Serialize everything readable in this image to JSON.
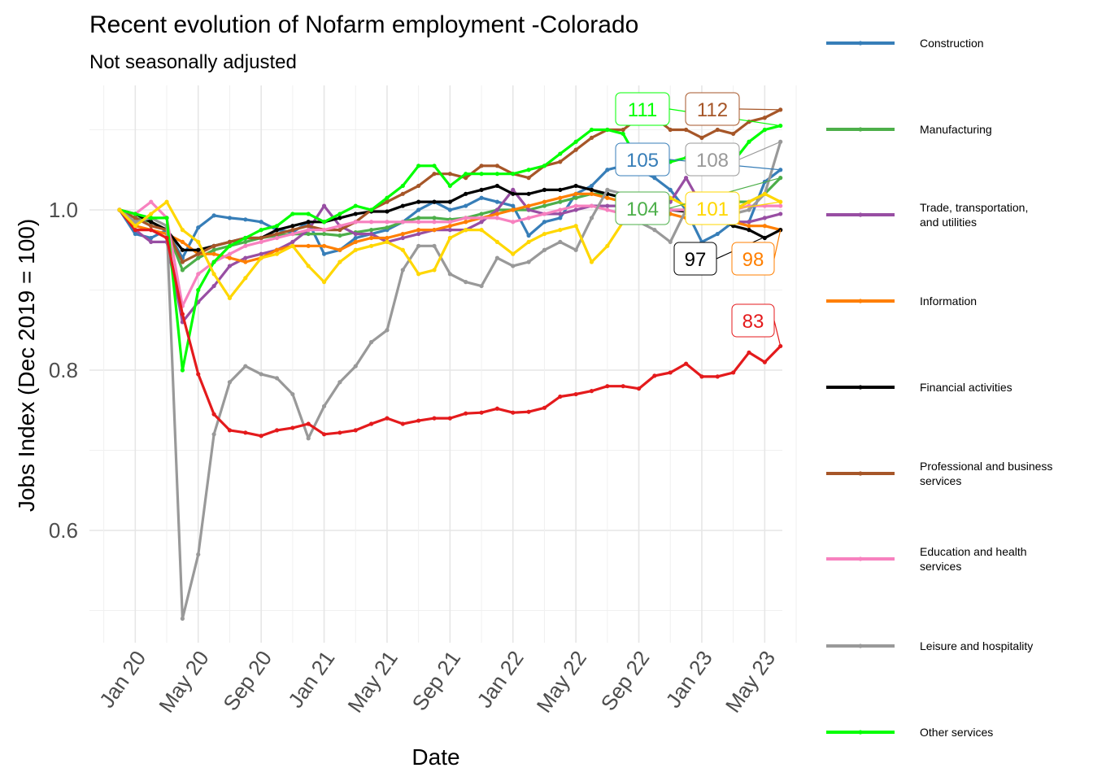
{
  "chart_data": {
    "type": "line",
    "title": "Recent evolution of Nofarm employment -Colorado",
    "subtitle": "Not seasonally adjusted",
    "xlabel": "Date",
    "ylabel": "Jobs Index (Dec 2019 = 100)",
    "ylim": [
      0.46,
      1.14
    ],
    "yticks": [
      0.6,
      0.8,
      1.0
    ],
    "ytick_labels": [
      "0.6",
      "0.8",
      "1.0"
    ],
    "xtick_labels": [
      "Jan 20",
      "May 20",
      "Sep 20",
      "Jan 21",
      "May 21",
      "Sep 21",
      "Jan 22",
      "May 22",
      "Sep 22",
      "Jan 23",
      "May 23"
    ],
    "x": [
      "Dec 19",
      "Jan 20",
      "Feb 20",
      "Mar 20",
      "Apr 20",
      "May 20",
      "Jun 20",
      "Jul 20",
      "Aug 20",
      "Sep 20",
      "Oct 20",
      "Nov 20",
      "Dec 20",
      "Jan 21",
      "Feb 21",
      "Mar 21",
      "Apr 21",
      "May 21",
      "Jun 21",
      "Jul 21",
      "Aug 21",
      "Sep 21",
      "Oct 21",
      "Nov 21",
      "Dec 21",
      "Jan 22",
      "Feb 22",
      "Mar 22",
      "Apr 22",
      "May 22",
      "Jun 22",
      "Jul 22",
      "Aug 22",
      "Sep 22",
      "Oct 22",
      "Nov 22",
      "Dec 22",
      "Jan 23",
      "Feb 23",
      "Mar 23",
      "Apr 23",
      "May 23",
      "Jun 23"
    ],
    "grid": true,
    "legend_position": "right",
    "series": [
      {
        "name": "Construction",
        "color": "#377eb8",
        "end_label": "105",
        "values": [
          1.0,
          0.97,
          0.965,
          0.975,
          0.94,
          0.978,
          0.993,
          0.99,
          0.988,
          0.985,
          0.975,
          0.972,
          0.985,
          0.945,
          0.95,
          0.965,
          0.97,
          0.975,
          0.985,
          1.0,
          1.01,
          1.0,
          1.005,
          1.015,
          1.01,
          1.005,
          0.968,
          0.985,
          0.99,
          1.02,
          1.03,
          1.05,
          1.055,
          1.05,
          1.04,
          1.025,
          1.0,
          0.96,
          0.97,
          0.985,
          0.985,
          1.035,
          1.05
        ]
      },
      {
        "name": "Manufacturing",
        "color": "#4daf4a",
        "end_label": "104",
        "values": [
          1.0,
          0.99,
          0.985,
          0.975,
          0.925,
          0.94,
          0.95,
          0.955,
          0.96,
          0.965,
          0.968,
          0.97,
          0.97,
          0.97,
          0.968,
          0.972,
          0.975,
          0.978,
          0.985,
          0.99,
          0.99,
          0.988,
          0.99,
          0.995,
          1.0,
          1.0,
          1.0,
          1.005,
          1.01,
          1.015,
          1.02,
          1.02,
          1.015,
          1.01,
          1.0,
          1.0,
          1.0,
          1.0,
          1.005,
          1.01,
          1.01,
          1.02,
          1.04
        ]
      },
      {
        "name": "Trade, transportation,\nand utilities",
        "color": "#984ea3",
        "end_label": "",
        "values": [
          1.0,
          0.975,
          0.96,
          0.96,
          0.86,
          0.885,
          0.905,
          0.93,
          0.94,
          0.945,
          0.95,
          0.96,
          0.975,
          1.005,
          0.98,
          0.97,
          0.97,
          0.96,
          0.965,
          0.97,
          0.975,
          0.975,
          0.975,
          0.985,
          1.0,
          1.025,
          1.0,
          0.995,
          0.995,
          1.0,
          1.005,
          1.005,
          1.005,
          1.0,
          0.995,
          1.01,
          1.04,
          1.005,
          0.99,
          0.985,
          0.985,
          0.99,
          0.995
        ]
      },
      {
        "name": "Information",
        "color": "#ff7f00",
        "end_label": "98",
        "values": [
          1.0,
          0.98,
          0.975,
          0.97,
          0.96,
          0.945,
          0.945,
          0.94,
          0.935,
          0.94,
          0.95,
          0.955,
          0.955,
          0.955,
          0.95,
          0.96,
          0.965,
          0.965,
          0.97,
          0.975,
          0.975,
          0.98,
          0.985,
          0.99,
          0.995,
          1.0,
          1.005,
          1.01,
          1.015,
          1.02,
          1.02,
          1.015,
          1.01,
          1.005,
          1.0,
          0.995,
          0.99,
          0.985,
          0.985,
          0.985,
          0.98,
          0.98,
          0.975
        ]
      },
      {
        "name": "Financial activities",
        "color": "#000000",
        "end_label": "97",
        "values": [
          1.0,
          0.995,
          0.985,
          0.975,
          0.95,
          0.95,
          0.955,
          0.96,
          0.965,
          0.965,
          0.975,
          0.98,
          0.985,
          0.985,
          0.99,
          0.995,
          0.998,
          0.998,
          1.005,
          1.01,
          1.01,
          1.01,
          1.02,
          1.025,
          1.03,
          1.02,
          1.02,
          1.025,
          1.025,
          1.03,
          1.025,
          1.02,
          1.015,
          1.01,
          1.005,
          1.0,
          0.998,
          0.995,
          0.99,
          0.98,
          0.975,
          0.965,
          0.975
        ]
      },
      {
        "name": "Professional and business\nservices",
        "color": "#a65628",
        "end_label": "112",
        "values": [
          1.0,
          0.99,
          0.98,
          0.975,
          0.935,
          0.945,
          0.955,
          0.96,
          0.965,
          0.965,
          0.97,
          0.975,
          0.98,
          0.975,
          0.975,
          0.985,
          1.0,
          1.01,
          1.02,
          1.03,
          1.045,
          1.045,
          1.04,
          1.055,
          1.055,
          1.045,
          1.04,
          1.055,
          1.06,
          1.075,
          1.09,
          1.1,
          1.1,
          1.115,
          1.115,
          1.1,
          1.1,
          1.09,
          1.1,
          1.095,
          1.11,
          1.115,
          1.125
        ]
      },
      {
        "name": "Education and health\nservices",
        "color": "#f781bf",
        "end_label": "",
        "values": [
          1.0,
          0.995,
          1.01,
          0.99,
          0.88,
          0.92,
          0.935,
          0.945,
          0.955,
          0.96,
          0.965,
          0.97,
          0.975,
          0.975,
          0.98,
          0.985,
          0.985,
          0.985,
          0.985,
          0.985,
          0.985,
          0.985,
          0.99,
          0.99,
          0.99,
          0.985,
          0.99,
          0.995,
          1.0,
          1.005,
          1.005,
          1.0,
          0.995,
          0.99,
          0.995,
          1.0,
          1.0,
          1.0,
          1.005,
          1.0,
          1.005,
          1.005,
          1.005
        ]
      },
      {
        "name": "Leisure and hospitality",
        "color": "#999999",
        "end_label": "108",
        "values": [
          1.0,
          0.985,
          0.99,
          0.98,
          0.49,
          0.57,
          0.72,
          0.785,
          0.805,
          0.795,
          0.79,
          0.77,
          0.715,
          0.755,
          0.785,
          0.805,
          0.835,
          0.85,
          0.925,
          0.955,
          0.955,
          0.92,
          0.91,
          0.905,
          0.94,
          0.93,
          0.935,
          0.95,
          0.96,
          0.95,
          0.99,
          1.025,
          1.02,
          0.985,
          0.975,
          0.96,
          1.0,
          1.02,
          1.005,
          0.995,
          1.0,
          1.02,
          1.085
        ]
      },
      {
        "name": "Other services",
        "color": "#00ff00",
        "end_label": "111",
        "values": [
          1.0,
          0.995,
          0.99,
          0.99,
          0.8,
          0.9,
          0.935,
          0.955,
          0.965,
          0.975,
          0.98,
          0.995,
          0.995,
          0.985,
          0.995,
          1.005,
          1.0,
          1.015,
          1.03,
          1.055,
          1.055,
          1.03,
          1.045,
          1.045,
          1.045,
          1.045,
          1.05,
          1.055,
          1.07,
          1.085,
          1.1,
          1.1,
          1.095,
          1.06,
          1.07,
          1.06,
          1.065,
          1.07,
          1.07,
          1.06,
          1.085,
          1.1,
          1.105
        ]
      },
      {
        "name": "",
        "color": "#e41a1c",
        "end_label": "83",
        "values": [
          1.0,
          0.975,
          0.975,
          0.965,
          0.87,
          0.795,
          0.745,
          0.725,
          0.722,
          0.718,
          0.725,
          0.728,
          0.733,
          0.72,
          0.722,
          0.725,
          0.733,
          0.74,
          0.733,
          0.737,
          0.74,
          0.74,
          0.746,
          0.747,
          0.752,
          0.747,
          0.748,
          0.753,
          0.767,
          0.77,
          0.774,
          0.78,
          0.78,
          0.777,
          0.793,
          0.797,
          0.808,
          0.792,
          0.792,
          0.797,
          0.822,
          0.81,
          0.83
        ]
      },
      {
        "name": "",
        "color": "#ffd700",
        "end_label": "101",
        "values": [
          1.0,
          0.98,
          0.995,
          1.01,
          0.975,
          0.96,
          0.92,
          0.89,
          0.915,
          0.94,
          0.945,
          0.955,
          0.93,
          0.91,
          0.935,
          0.95,
          0.955,
          0.96,
          0.95,
          0.92,
          0.925,
          0.965,
          0.975,
          0.975,
          0.96,
          0.945,
          0.96,
          0.97,
          0.975,
          0.98,
          0.935,
          0.955,
          0.985,
          1.005,
          1.02,
          1.015,
          1.005,
          0.985,
          0.99,
          1.0,
          1.01,
          1.02,
          1.01
        ]
      }
    ]
  }
}
